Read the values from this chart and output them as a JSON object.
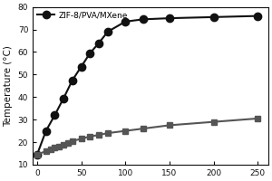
{
  "series1_label": "ZIF-8/PVA/MXene",
  "series1_x": [
    0,
    10,
    20,
    30,
    40,
    50,
    60,
    70,
    80,
    100,
    120,
    150,
    200,
    250
  ],
  "series1_y": [
    14.5,
    25,
    32,
    39.5,
    47.5,
    53.5,
    59.5,
    64,
    69,
    73.5,
    74.5,
    75,
    75.5,
    76
  ],
  "series2_x": [
    0,
    10,
    15,
    20,
    25,
    30,
    35,
    40,
    50,
    60,
    70,
    80,
    100,
    120,
    150,
    200,
    250
  ],
  "series2_y": [
    14.5,
    16,
    16.8,
    17.5,
    18.2,
    19,
    19.8,
    20.5,
    21.5,
    22.5,
    23.2,
    24,
    25,
    26,
    27.5,
    29,
    30.5
  ],
  "series1_color": "#111111",
  "series2_color": "#555555",
  "marker1": "o",
  "marker2": "s",
  "ylabel": "Temperature (°C)",
  "ylim": [
    10,
    80
  ],
  "xlim": [
    -5,
    262
  ],
  "yticks": [
    10,
    20,
    30,
    40,
    50,
    60,
    70,
    80
  ],
  "xticks": [
    0,
    50,
    100,
    150,
    200,
    250
  ],
  "linewidth": 1.5,
  "markersize1": 6,
  "markersize2": 4.5,
  "legend_fontsize": 6.5,
  "label_fontsize": 7.5,
  "tick_fontsize": 6.5,
  "background_color": "#ffffff"
}
